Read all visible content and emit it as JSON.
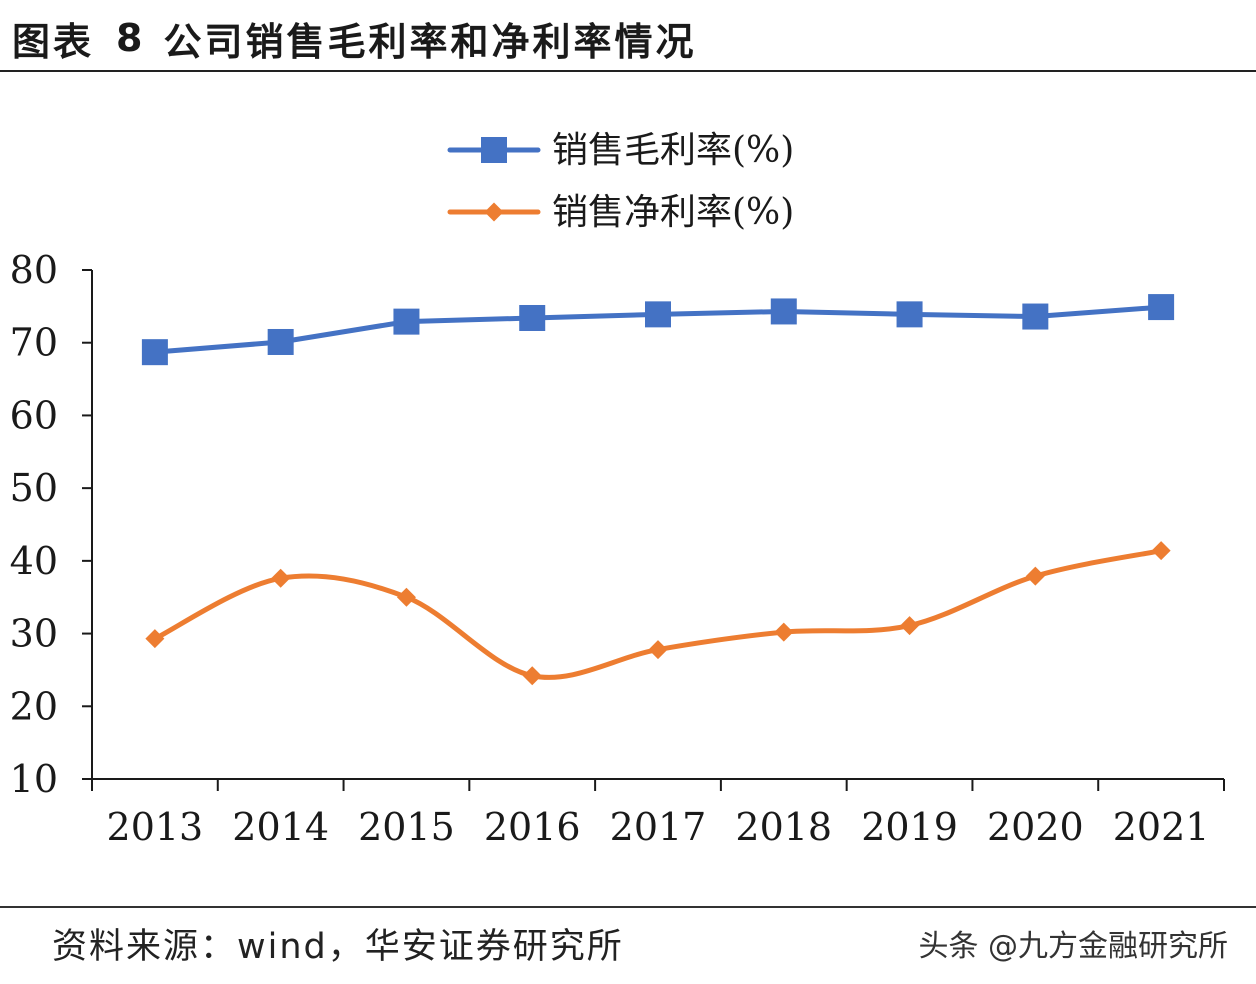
{
  "header": {
    "figure_label": "图表",
    "figure_number": "8",
    "title": "公司销售毛利率和净利率情况"
  },
  "footer": {
    "source": "资料来源：wind，华安证券研究所",
    "watermark": "头条 @九方金融研究所"
  },
  "colors": {
    "gross_margin": "#4472C4",
    "net_margin": "#ED7D31",
    "axis": "#1a1a1a"
  },
  "chart_data": {
    "type": "line",
    "title": "公司销售毛利率和净利率情况",
    "xlabel": "",
    "ylabel": "",
    "categories": [
      "2013",
      "2014",
      "2015",
      "2016",
      "2017",
      "2018",
      "2019",
      "2020",
      "2021"
    ],
    "ylim": [
      10,
      80
    ],
    "yticks": [
      10,
      20,
      30,
      40,
      50,
      60,
      70,
      80
    ],
    "grid": false,
    "legend_position": "top-center",
    "series": [
      {
        "name": "销售毛利率(%)",
        "marker": "square",
        "smooth": false,
        "values": [
          68.7,
          70.1,
          72.9,
          73.4,
          73.9,
          74.3,
          73.9,
          73.6,
          74.9
        ]
      },
      {
        "name": "销售净利率(%)",
        "marker": "diamond",
        "smooth": true,
        "values": [
          29.3,
          37.6,
          35.0,
          24.2,
          27.8,
          30.2,
          31.1,
          37.9,
          41.4
        ]
      }
    ]
  }
}
